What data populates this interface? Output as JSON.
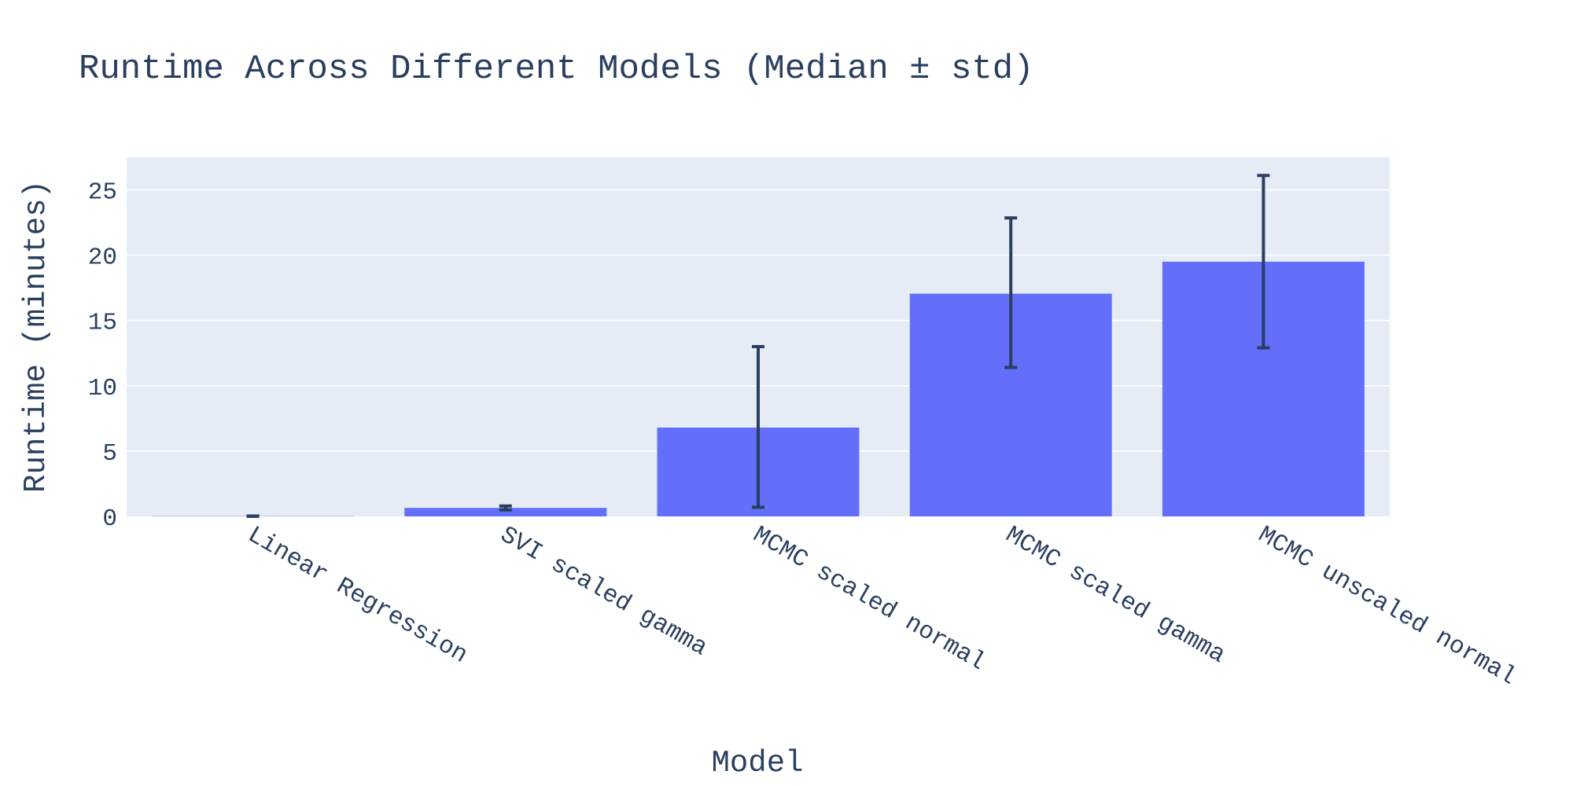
{
  "chart_data": {
    "type": "bar",
    "title": "Runtime Across Different Models (Median ± std)",
    "xlabel": "Model",
    "ylabel": "Runtime (minutes)",
    "categories": [
      "Linear Regression",
      "SVI scaled gamma",
      "MCMC scaled normal",
      "MCMC scaled gamma",
      "MCMC unscaled normal"
    ],
    "values": [
      0.02,
      0.65,
      6.8,
      17.05,
      19.5
    ],
    "error_plus": [
      0.01,
      0.15,
      6.2,
      5.8,
      6.6
    ],
    "error_minus": [
      0.01,
      0.15,
      6.1,
      5.65,
      6.6
    ],
    "ylim": [
      0,
      27.5
    ],
    "yticks": [
      0,
      5,
      10,
      15,
      20,
      25
    ],
    "grid": true,
    "legend": "none",
    "colors": {
      "bar": "#636efa",
      "plot_background": "#e5ecf6",
      "error_bar": "#2a3f5f",
      "text": "#2a3f5f",
      "grid": "#ffffff"
    }
  }
}
